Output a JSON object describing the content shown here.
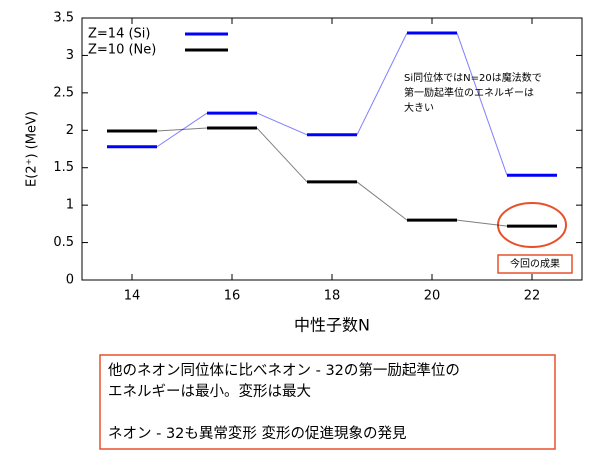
{
  "chart_data": {
    "type": "level",
    "xlabel": "中性子数N",
    "ylabel": "E(2⁺) (MeV)",
    "x": [
      14,
      16,
      18,
      20,
      22
    ],
    "series": [
      {
        "name": "Z=14 (Si)",
        "color": "#0000ff",
        "values": [
          1.78,
          2.23,
          1.94,
          3.3,
          1.4
        ]
      },
      {
        "name": "Z=10 (Ne)",
        "color": "#000000",
        "values": [
          1.99,
          2.03,
          1.31,
          0.8,
          0.72
        ]
      }
    ],
    "xlim": [
      13,
      23
    ],
    "xticks": [
      14,
      16,
      18,
      20,
      22
    ],
    "ylim": [
      0,
      3.5
    ],
    "yticks": [
      0,
      0.5,
      1,
      1.5,
      2,
      2.5,
      3,
      3.5
    ],
    "annotation": [
      "Si同位体ではN=20は魔法数で",
      "第一励起準位のエネルギーは",
      "大きい"
    ],
    "highlight_label": "今回の成果"
  },
  "summary": [
    [
      "他のネオン同位体に比べネオン - 32の第一励起準位の",
      "エネルギーは最小。変形は最大"
    ],
    [
      "ネオン - 32も異常変形  変形の促進現象の発見"
    ]
  ]
}
